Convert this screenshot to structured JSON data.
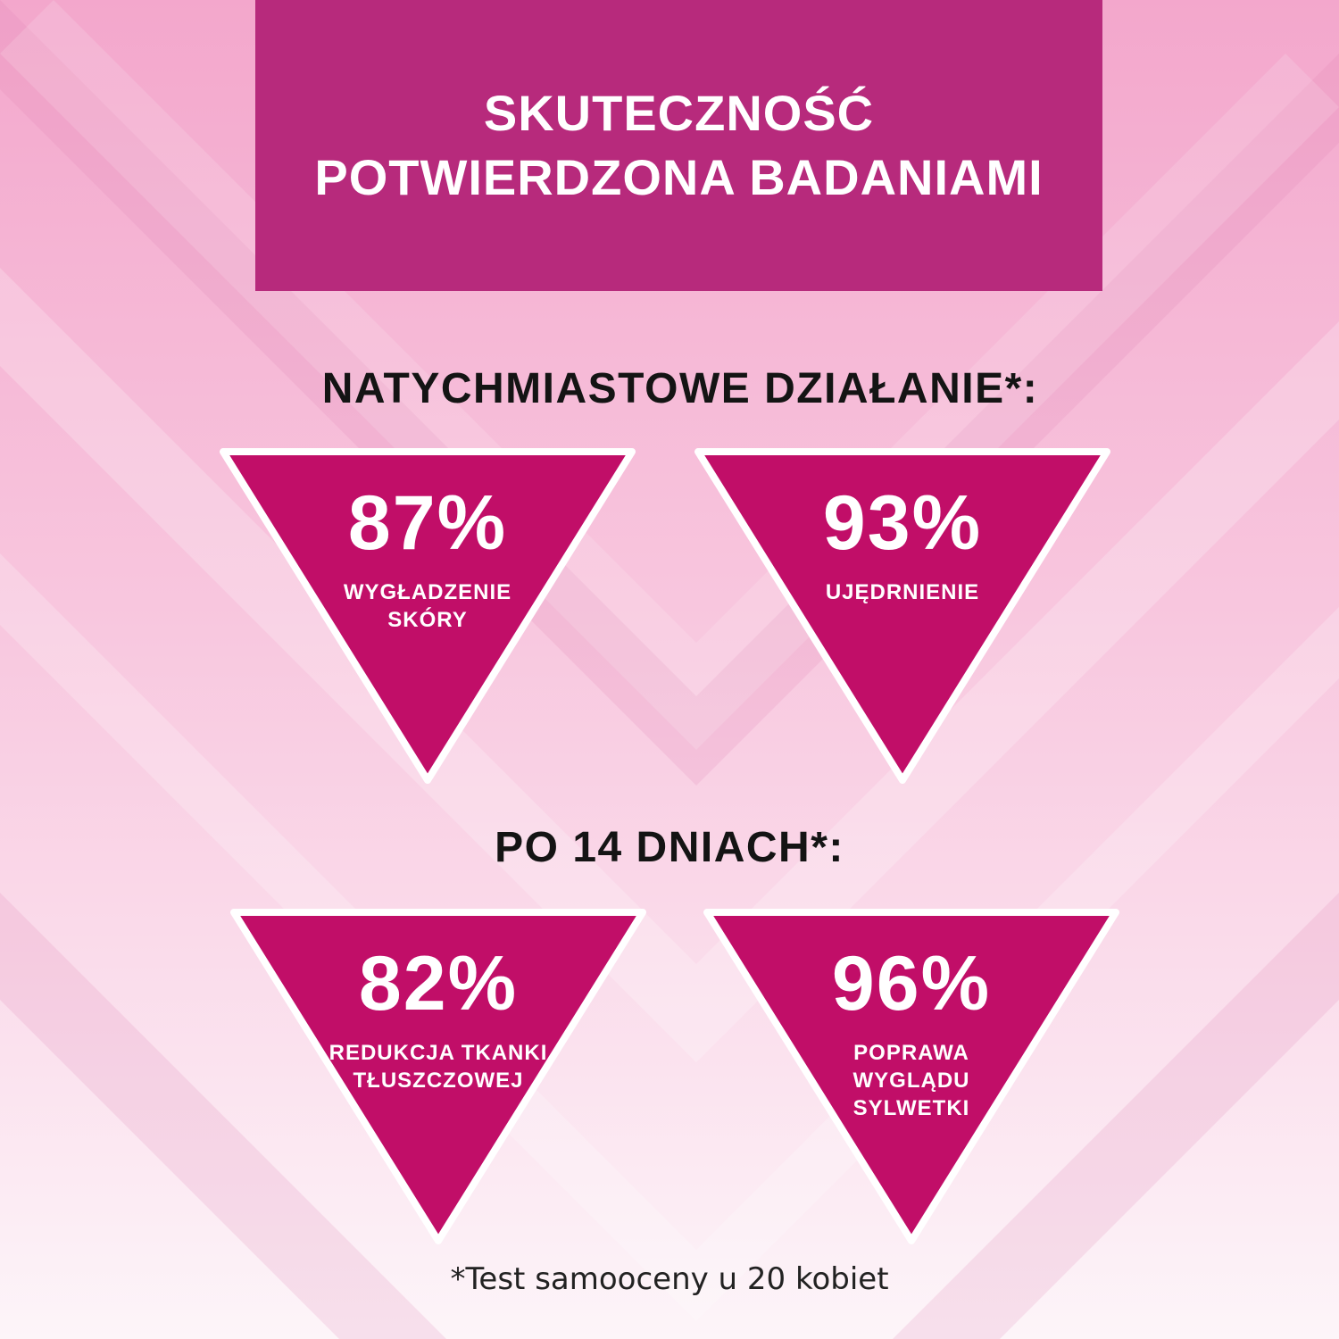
{
  "header": {
    "line1": "SKUTECZNOŚĆ",
    "line2": "POTWIERDZONA BADANIAMI"
  },
  "section_immediate": {
    "title": "NATYCHMIASTOWE DZIAŁANIE*:",
    "stats": [
      {
        "value": "87%",
        "label_lines": [
          "WYGŁADZENIE",
          "SKÓRY"
        ]
      },
      {
        "value": "93%",
        "label_lines": [
          "UJĘDRNIENIE"
        ]
      }
    ]
  },
  "section_14days": {
    "title": "PO 14 DNIACH*:",
    "stats": [
      {
        "value": "82%",
        "label_lines": [
          "REDUKCJA TKANKI",
          "TŁUSZCZOWEJ"
        ]
      },
      {
        "value": "96%",
        "label_lines": [
          "POPRAWA",
          "WYGLĄDU",
          "SYLWETKI"
        ]
      }
    ]
  },
  "footnote": "*Test samooceny u 20 kobiet",
  "colors": {
    "header_bg": "#b72a7c",
    "triangle_fill": "#c10e68",
    "triangle_border": "#ffffff",
    "title_text": "#141414",
    "background_top": "#f4a9cd",
    "background_bottom": "#fdf3f8"
  }
}
